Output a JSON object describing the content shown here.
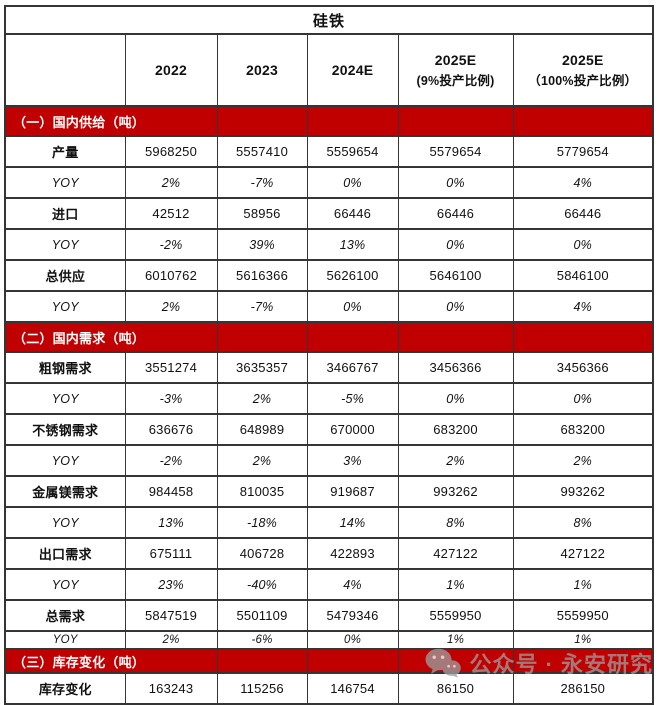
{
  "title": "硅铁",
  "columns": [
    {
      "line1": "",
      "line2": ""
    },
    {
      "line1": "2022",
      "line2": ""
    },
    {
      "line1": "2023",
      "line2": ""
    },
    {
      "line1": "2024E",
      "line2": ""
    },
    {
      "line1": "2025E",
      "line2": "(9%投产比例)"
    },
    {
      "line1": "2025E",
      "line2": "（100%投产比例）"
    }
  ],
  "sections": [
    {
      "header": "（一）国内供给（吨）",
      "rows": [
        {
          "kind": "data",
          "label": "产量",
          "values": [
            "5968250",
            "5557410",
            "5559654",
            "5579654",
            "5779654"
          ]
        },
        {
          "kind": "yoy",
          "label": "YOY",
          "values": [
            "2%",
            "-7%",
            "0%",
            "0%",
            "4%"
          ]
        },
        {
          "kind": "data",
          "label": "进口",
          "values": [
            "42512",
            "58956",
            "66446",
            "66446",
            "66446"
          ]
        },
        {
          "kind": "yoy",
          "label": "YOY",
          "values": [
            "-2%",
            "39%",
            "13%",
            "0%",
            "0%"
          ]
        },
        {
          "kind": "data",
          "label": "总供应",
          "values": [
            "6010762",
            "5616366",
            "5626100",
            "5646100",
            "5846100"
          ]
        },
        {
          "kind": "yoy",
          "label": "YOY",
          "values": [
            "2%",
            "-7%",
            "0%",
            "0%",
            "4%"
          ]
        }
      ]
    },
    {
      "header": "（二）国内需求（吨）",
      "rows": [
        {
          "kind": "data",
          "label": "粗钢需求",
          "values": [
            "3551274",
            "3635357",
            "3466767",
            "3456366",
            "3456366"
          ]
        },
        {
          "kind": "yoy",
          "label": "YOY",
          "values": [
            "-3%",
            "2%",
            "-5%",
            "0%",
            "0%"
          ]
        },
        {
          "kind": "data",
          "label": "不锈钢需求",
          "values": [
            "636676",
            "648989",
            "670000",
            "683200",
            "683200"
          ]
        },
        {
          "kind": "yoy",
          "label": "YOY",
          "values": [
            "-2%",
            "2%",
            "3%",
            "2%",
            "2%"
          ]
        },
        {
          "kind": "data",
          "label": "金属镁需求",
          "values": [
            "984458",
            "810035",
            "919687",
            "993262",
            "993262"
          ]
        },
        {
          "kind": "yoy",
          "label": "YOY",
          "values": [
            "13%",
            "-18%",
            "14%",
            "8%",
            "8%"
          ]
        },
        {
          "kind": "data",
          "label": "出口需求",
          "values": [
            "675111",
            "406728",
            "422893",
            "427122",
            "427122"
          ]
        },
        {
          "kind": "yoy",
          "label": "YOY",
          "values": [
            "23%",
            "-40%",
            "4%",
            "1%",
            "1%"
          ]
        },
        {
          "kind": "data",
          "label": "总需求",
          "values": [
            "5847519",
            "5501109",
            "5479346",
            "5559950",
            "5559950"
          ]
        },
        {
          "kind": "yoy",
          "label": "YOY",
          "compact": true,
          "values": [
            "2%",
            "-6%",
            "0%",
            "1%",
            "1%"
          ]
        }
      ]
    },
    {
      "header": "（三）库存变化（吨）",
      "compact_band": true,
      "rows": [
        {
          "kind": "data",
          "label": "库存变化",
          "values": [
            "163243",
            "115256",
            "146754",
            "86150",
            "286150"
          ]
        }
      ]
    }
  ],
  "watermark": {
    "text": "公众号 · 永安研究",
    "icon": "wechat-official-account-icon"
  },
  "colors": {
    "section_band": "#C00000",
    "band_text": "#FFFFFF",
    "grid_border": "#353535",
    "watermark": "#9C9C9C"
  }
}
